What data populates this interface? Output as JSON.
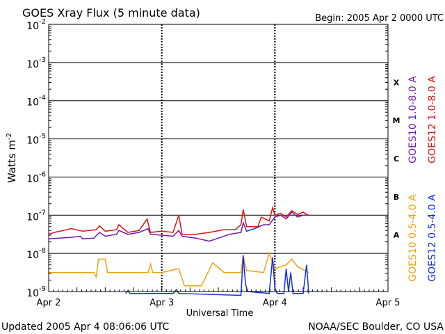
{
  "chart_data": {
    "type": "line",
    "title": "GOES Xray Flux (5 minute data)",
    "begin_label": "Begin:  2005 Apr 2 0000 UTC",
    "xlabel": "Universal Time",
    "ylabel_base": "Watts m",
    "ylabel_exp": "-2",
    "ylog": true,
    "ylim": [
      1e-09,
      0.01
    ],
    "xlim": [
      0,
      3
    ],
    "x_unit": "days since Apr 2 0000 UTC",
    "x_ticks": [
      {
        "value": 0,
        "label": "Apr 2"
      },
      {
        "value": 1,
        "label": "Apr 3"
      },
      {
        "value": 2,
        "label": "Apr 4"
      },
      {
        "value": 3,
        "label": "Apr 5"
      }
    ],
    "y_ticks": [
      {
        "exp": -2,
        "base": "10",
        "sup": "-2"
      },
      {
        "exp": -3,
        "base": "10",
        "sup": "-3"
      },
      {
        "exp": -4,
        "base": "10",
        "sup": "-4"
      },
      {
        "exp": -5,
        "base": "10",
        "sup": "-5"
      },
      {
        "exp": -6,
        "base": "10",
        "sup": "-6"
      },
      {
        "exp": -7,
        "base": "10",
        "sup": "-7"
      },
      {
        "exp": -8,
        "base": "10",
        "sup": "-8"
      },
      {
        "exp": -9,
        "base": "10",
        "sup": "-9"
      }
    ],
    "flare_classes": [
      {
        "label": "X",
        "exp": -3.5
      },
      {
        "label": "M",
        "exp": -4.5
      },
      {
        "label": "C",
        "exp": -5.5
      },
      {
        "label": "B",
        "exp": -6.5
      },
      {
        "label": "A",
        "exp": -7.5
      }
    ],
    "grid": true,
    "legend_position": "right, vertical",
    "series": [
      {
        "name": "GOES10 1.0-8.0 A",
        "color": "#6a1ab0",
        "points": [
          [
            0.0,
            -7.62
          ],
          [
            0.2,
            -7.58
          ],
          [
            0.28,
            -7.55
          ],
          [
            0.3,
            -7.62
          ],
          [
            0.4,
            -7.6
          ],
          [
            0.45,
            -7.45
          ],
          [
            0.5,
            -7.55
          ],
          [
            0.6,
            -7.5
          ],
          [
            0.62,
            -7.4
          ],
          [
            0.7,
            -7.5
          ],
          [
            0.8,
            -7.45
          ],
          [
            0.88,
            -7.35
          ],
          [
            0.9,
            -7.5
          ],
          [
            1.1,
            -7.55
          ],
          [
            1.15,
            -7.4
          ],
          [
            1.18,
            -7.55
          ],
          [
            1.3,
            -7.6
          ],
          [
            1.42,
            -7.68
          ],
          [
            1.48,
            -7.62
          ],
          [
            1.6,
            -7.5
          ],
          [
            1.7,
            -7.45
          ],
          [
            1.72,
            -7.2
          ],
          [
            1.75,
            -7.42
          ],
          [
            1.82,
            -7.35
          ],
          [
            1.9,
            -7.25
          ],
          [
            1.95,
            -7.25
          ],
          [
            2.0,
            -7.05
          ],
          [
            2.05,
            -7.0
          ],
          [
            2.1,
            -7.1
          ],
          [
            2.15,
            -6.92
          ],
          [
            2.2,
            -7.05
          ],
          [
            2.25,
            -7.0
          ],
          [
            2.3,
            -7.0
          ]
        ]
      },
      {
        "name": "GOES12 1.0-8.0 A",
        "color": "#e01010",
        "points": [
          [
            0.0,
            -7.5
          ],
          [
            0.05,
            -7.45
          ],
          [
            0.1,
            -7.42
          ],
          [
            0.2,
            -7.35
          ],
          [
            0.3,
            -7.42
          ],
          [
            0.42,
            -7.38
          ],
          [
            0.45,
            -7.28
          ],
          [
            0.5,
            -7.42
          ],
          [
            0.6,
            -7.38
          ],
          [
            0.62,
            -7.25
          ],
          [
            0.7,
            -7.45
          ],
          [
            0.8,
            -7.4
          ],
          [
            0.87,
            -7.1
          ],
          [
            0.9,
            -7.45
          ],
          [
            1.0,
            -7.42
          ],
          [
            1.1,
            -7.45
          ],
          [
            1.15,
            -7.0
          ],
          [
            1.18,
            -7.5
          ],
          [
            1.3,
            -7.5
          ],
          [
            1.42,
            -7.45
          ],
          [
            1.55,
            -7.38
          ],
          [
            1.65,
            -7.38
          ],
          [
            1.7,
            -7.25
          ],
          [
            1.72,
            -6.85
          ],
          [
            1.75,
            -7.3
          ],
          [
            1.85,
            -7.3
          ],
          [
            1.88,
            -7.05
          ],
          [
            1.95,
            -7.15
          ],
          [
            1.98,
            -6.8
          ],
          [
            2.0,
            -7.0
          ],
          [
            2.05,
            -6.95
          ],
          [
            2.1,
            -7.05
          ],
          [
            2.15,
            -6.88
          ],
          [
            2.2,
            -6.98
          ],
          [
            2.25,
            -6.92
          ],
          [
            2.28,
            -6.98
          ],
          [
            2.3,
            -7.0
          ]
        ]
      },
      {
        "name": "GOES10 0.5-4.0 A",
        "color": "#f0a010",
        "points": [
          [
            0.0,
            -8.5
          ],
          [
            0.4,
            -8.5
          ],
          [
            0.42,
            -8.62
          ],
          [
            0.44,
            -8.15
          ],
          [
            0.5,
            -8.15
          ],
          [
            0.52,
            -8.5
          ],
          [
            0.88,
            -8.5
          ],
          [
            0.9,
            -8.28
          ],
          [
            0.92,
            -8.5
          ],
          [
            1.0,
            -8.5
          ],
          [
            1.15,
            -8.4
          ],
          [
            1.2,
            -8.85
          ],
          [
            1.35,
            -8.85
          ],
          [
            1.45,
            -8.25
          ],
          [
            1.55,
            -8.5
          ],
          [
            1.7,
            -8.5
          ],
          [
            1.72,
            -8.05
          ],
          [
            1.75,
            -8.45
          ],
          [
            1.9,
            -8.5
          ],
          [
            1.95,
            -8.0
          ],
          [
            2.0,
            -8.4
          ],
          [
            2.1,
            -8.3
          ],
          [
            2.15,
            -8.15
          ],
          [
            2.2,
            -8.35
          ],
          [
            2.3,
            -8.5
          ]
        ]
      },
      {
        "name": "GOES12 0.5-4.0 A",
        "color": "#1030e0",
        "points": [
          [
            0.68,
            -9.05
          ],
          [
            0.7,
            -8.98
          ],
          [
            0.72,
            -9.05
          ],
          [
            1.1,
            -9.05
          ],
          [
            1.13,
            -8.95
          ],
          [
            1.15,
            -9.05
          ],
          [
            1.7,
            -9.1
          ],
          [
            1.72,
            -8.05
          ],
          [
            1.74,
            -8.8
          ],
          [
            1.76,
            -9.0
          ],
          [
            1.95,
            -9.05
          ],
          [
            1.98,
            -8.1
          ],
          [
            2.0,
            -8.9
          ],
          [
            2.02,
            -9.05
          ],
          [
            2.08,
            -9.05
          ],
          [
            2.1,
            -8.4
          ],
          [
            2.12,
            -9.0
          ],
          [
            2.14,
            -8.5
          ],
          [
            2.16,
            -9.05
          ],
          [
            2.25,
            -9.05
          ],
          [
            2.28,
            -8.3
          ],
          [
            2.3,
            -9.05
          ]
        ]
      }
    ]
  },
  "footer": {
    "updated": "Updated 2005 Apr  4 08:06:06 UTC",
    "source": "NOAA/SEC Boulder, CO USA"
  }
}
